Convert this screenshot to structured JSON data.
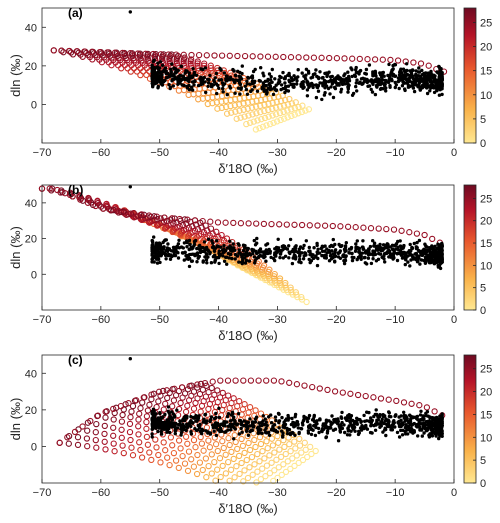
{
  "figure": {
    "background": "#ffffff",
    "axis_color": "#262626"
  },
  "colorscale": {
    "stops": [
      "#ffe892",
      "#f9b24a",
      "#e8582d",
      "#b41327",
      "#6e0b22"
    ],
    "range": [
      0,
      28
    ]
  },
  "chart_data": [
    {
      "type": "scatter",
      "panel_label": "(a)",
      "xlabel": "δ′18O (‰)",
      "ylabel": "dln (‰)",
      "xlim": [
        -70,
        0
      ],
      "ylim": [
        -20,
        50
      ],
      "xticks": [
        -70,
        -60,
        -50,
        -40,
        -30,
        -20,
        -10,
        0
      ],
      "yticks": [
        0,
        20,
        40
      ],
      "colorbar": {
        "ticks": [
          0,
          5,
          10,
          15,
          20,
          25
        ],
        "range": [
          0,
          28
        ]
      },
      "model": {
        "marker": "open-circle",
        "x_start_min": -68,
        "x_start_max": -48,
        "y_start_high": 28,
        "y_start_low": 2,
        "top_curve": [
          [
            -68,
            28
          ],
          [
            -50,
            26
          ],
          [
            -35,
            25
          ],
          [
            -20,
            24
          ],
          [
            -10,
            23
          ],
          [
            -5,
            21
          ],
          [
            -2,
            17
          ]
        ],
        "fan_bottom_x": -8,
        "fan_bottom_y": 5
      },
      "observations": {
        "marker": "filled-dot",
        "center_curve": [
          [
            -60,
            18
          ],
          [
            -50,
            15
          ],
          [
            -40,
            12
          ],
          [
            -30,
            11
          ],
          [
            -20,
            12
          ],
          [
            -10,
            14
          ],
          [
            -3,
            12
          ]
        ],
        "spread": 6,
        "x_min": -60,
        "x_max": -2,
        "outlier": [
          -55,
          48
        ]
      }
    },
    {
      "type": "scatter",
      "panel_label": "(b)",
      "xlabel": "δ′18O (‰)",
      "ylabel": "dln (‰)",
      "xlim": [
        -70,
        0
      ],
      "ylim": [
        -20,
        50
      ],
      "xticks": [
        -70,
        -60,
        -50,
        -40,
        -30,
        -20,
        -10,
        0
      ],
      "yticks": [
        0,
        20,
        40
      ],
      "colorbar": {
        "ticks": [
          0,
          5,
          10,
          15,
          20,
          25
        ],
        "range": [
          0,
          28
        ]
      },
      "model": {
        "marker": "open-circle",
        "x_start_min": -70,
        "x_start_max": -44,
        "y_start_high": 48,
        "y_start_low": 20,
        "top_curve": [
          [
            -68,
            48
          ],
          [
            -60,
            37
          ],
          [
            -50,
            32
          ],
          [
            -40,
            29
          ],
          [
            -30,
            28
          ],
          [
            -20,
            27
          ],
          [
            -10,
            25
          ],
          [
            -5,
            22
          ],
          [
            -2,
            17
          ]
        ],
        "fan_bottom_x": -12,
        "fan_bottom_y": -8
      },
      "observations": {
        "marker": "filled-dot",
        "center_curve": [
          [
            -60,
            16
          ],
          [
            -50,
            13
          ],
          [
            -40,
            12
          ],
          [
            -30,
            12
          ],
          [
            -20,
            12
          ],
          [
            -10,
            13
          ],
          [
            -3,
            11
          ]
        ],
        "spread": 6,
        "x_min": -60,
        "x_max": -2,
        "outlier": [
          -55,
          49
        ]
      }
    },
    {
      "type": "scatter",
      "panel_label": "(c)",
      "xlabel": "δ′18O (‰)",
      "ylabel": "dln (‰)",
      "xlim": [
        -70,
        0
      ],
      "ylim": [
        -20,
        50
      ],
      "xticks": [
        -70,
        -60,
        -50,
        -40,
        -30,
        -20,
        -10,
        0
      ],
      "yticks": [
        0,
        20,
        40
      ],
      "colorbar": {
        "ticks": [
          0,
          5,
          10,
          15,
          20,
          25
        ],
        "range": [
          0,
          28
        ]
      },
      "model": {
        "marker": "open-circle",
        "x_start_min": -67,
        "x_start_max": -43,
        "y_start_high": 10,
        "y_start_low": -12,
        "top_curve": [
          [
            -67,
            2
          ],
          [
            -60,
            18
          ],
          [
            -50,
            30
          ],
          [
            -40,
            36
          ],
          [
            -30,
            36
          ],
          [
            -20,
            30
          ],
          [
            -10,
            25
          ],
          [
            -5,
            22
          ],
          [
            -2,
            17
          ]
        ],
        "fan_bottom_x": -10,
        "fan_bottom_y": 5
      },
      "observations": {
        "marker": "filled-dot",
        "center_curve": [
          [
            -60,
            16
          ],
          [
            -50,
            13
          ],
          [
            -40,
            12
          ],
          [
            -30,
            11
          ],
          [
            -20,
            12
          ],
          [
            -10,
            13
          ],
          [
            -3,
            11
          ]
        ],
        "spread": 6,
        "x_min": -60,
        "x_max": -2,
        "outlier": [
          -55,
          48
        ]
      }
    }
  ]
}
